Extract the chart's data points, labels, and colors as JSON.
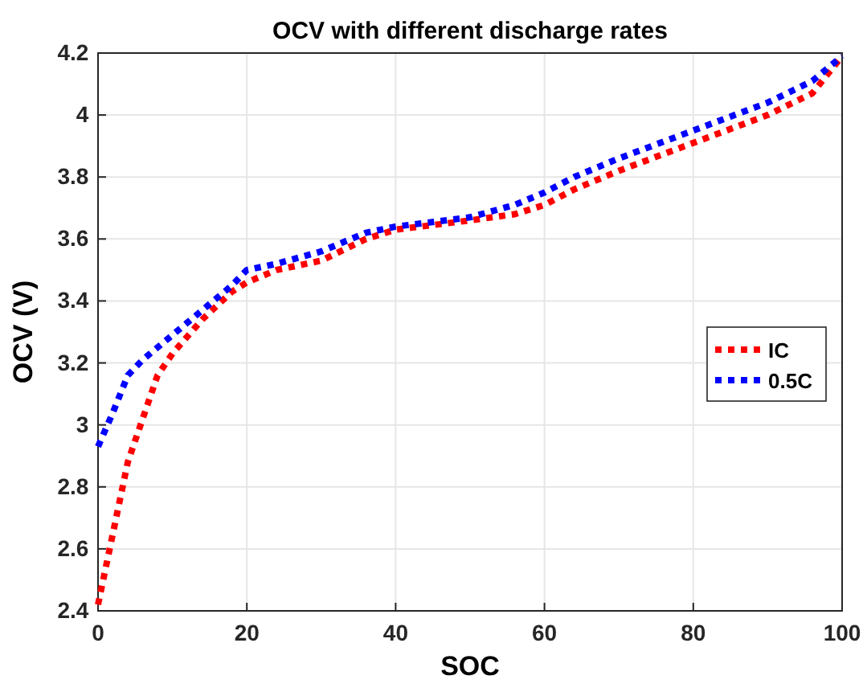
{
  "chart_data": {
    "type": "line",
    "title": "OCV with different discharge rates",
    "xlabel": "SOC",
    "ylabel": "OCV (V)",
    "x": [
      0,
      2,
      4,
      6,
      8,
      10,
      14,
      18,
      20,
      24,
      30,
      36,
      40,
      50,
      56,
      60,
      64,
      70,
      80,
      90,
      96,
      100
    ],
    "series": [
      {
        "name": "IC",
        "color": "#ff0000",
        "values": [
          2.42,
          2.65,
          2.88,
          3.02,
          3.16,
          3.23,
          3.34,
          3.43,
          3.46,
          3.5,
          3.53,
          3.6,
          3.63,
          3.66,
          3.68,
          3.71,
          3.76,
          3.82,
          3.91,
          4.0,
          4.07,
          4.19
        ]
      },
      {
        "name": "0.5C",
        "color": "#0000ff",
        "values": [
          2.93,
          3.04,
          3.16,
          3.21,
          3.25,
          3.29,
          3.37,
          3.45,
          3.5,
          3.52,
          3.56,
          3.62,
          3.64,
          3.67,
          3.71,
          3.75,
          3.8,
          3.86,
          3.95,
          4.04,
          4.11,
          4.19
        ]
      }
    ],
    "xlim": [
      0,
      100
    ],
    "xticks": [
      0,
      20,
      40,
      60,
      80,
      100
    ],
    "ylim": [
      2.4,
      4.2
    ],
    "yticks": [
      2.4,
      2.6,
      2.8,
      3,
      3.2,
      3.4,
      3.6,
      3.8,
      4,
      4.2
    ],
    "grid": true,
    "legend": "right",
    "line_style": "dotted",
    "marker": "none"
  }
}
